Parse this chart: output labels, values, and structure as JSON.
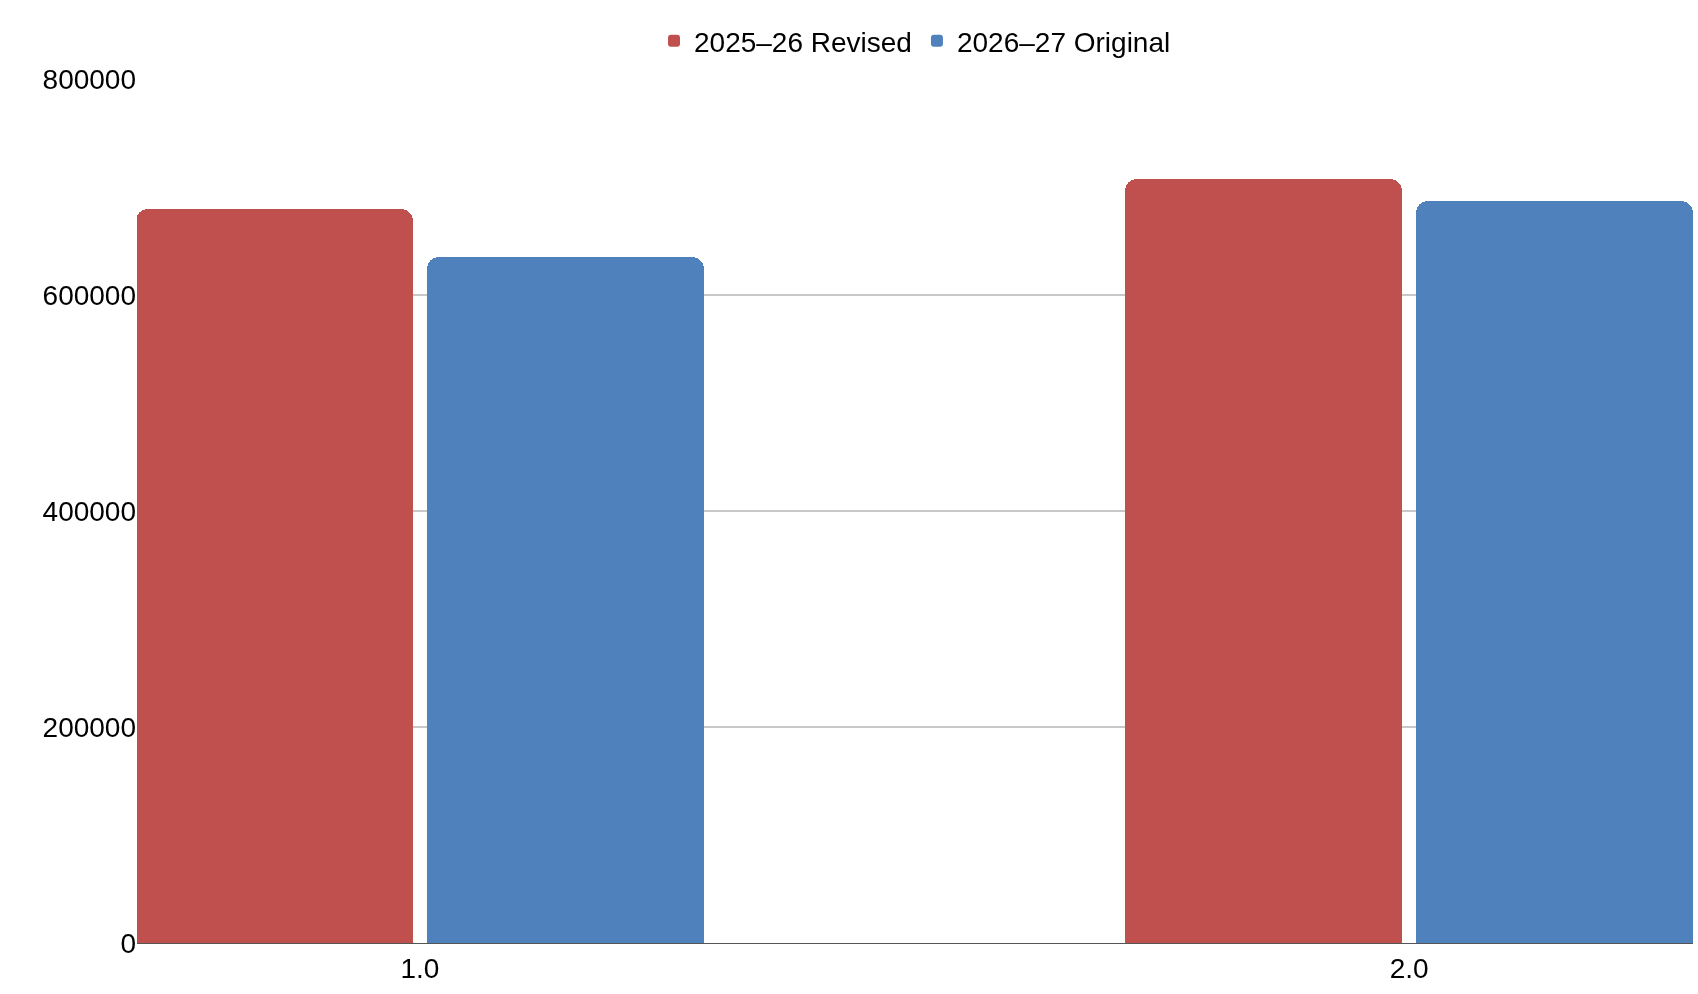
{
  "chart_data": {
    "type": "bar",
    "x": [
      1,
      2
    ],
    "series": [
      {
        "name": "2025–26 Revised",
        "color": "#c0504d",
        "values": [
          680000,
          707000
        ]
      },
      {
        "name": "2026–27 Original",
        "color": "#4f81bd",
        "values": [
          635000,
          687000
        ]
      }
    ],
    "xlim": [
      0.714,
      2.287
    ],
    "xticks": [
      {
        "value": 1,
        "label": "1.0"
      },
      {
        "value": 2,
        "label": "2.0"
      }
    ],
    "ylim": [
      0,
      800000
    ],
    "yticks": [
      0,
      200000,
      400000,
      600000,
      800000
    ],
    "grid": "y",
    "legend": "top"
  }
}
